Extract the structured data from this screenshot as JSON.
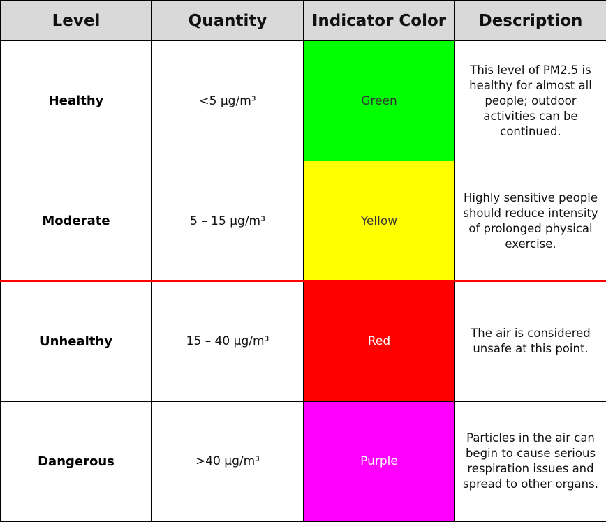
{
  "headers": {
    "level": "Level",
    "quantity": "Quantity",
    "indicator_color": "Indicator Color",
    "description": "Description"
  },
  "rows": [
    {
      "level": "Healthy",
      "quantity": "<5 µg/m³",
      "color_name": "Green",
      "color_hex": "#00ff00",
      "text_hex": "#333333",
      "description": "This level of PM2.5 is healthy for almost all people; outdoor activities can be continued."
    },
    {
      "level": "Moderate",
      "quantity": "5 – 15 µg/m³",
      "color_name": "Yellow",
      "color_hex": "#ffff00",
      "text_hex": "#333333",
      "description": "Highly sensitive people should reduce intensity of prolonged physical exercise."
    },
    {
      "level": "Unhealthy",
      "quantity": "15 – 40 µg/m³",
      "color_name": "Red",
      "color_hex": "#ff0000",
      "text_hex": "#ffffff",
      "description": "The air is considered unsafe at this point."
    },
    {
      "level": "Dangerous",
      "quantity": ">40 µg/m³",
      "color_name": "Purple",
      "color_hex": "#ff00ff",
      "text_hex": "#ffffff",
      "description": "Particles in the air can begin to cause serious respiration issues and spread to other organs."
    }
  ],
  "threshold_line_color": "#ff0000"
}
